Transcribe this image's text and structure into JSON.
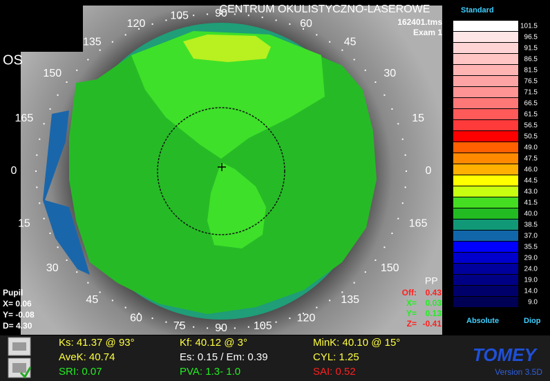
{
  "header": {
    "title": "CENTRUM OKULISTYCZNO-LASEROWE",
    "file": "162401.tms",
    "exam": "Exam 1"
  },
  "eye": "OS",
  "angles": [
    "0",
    "15",
    "30",
    "45",
    "60",
    null,
    "90",
    "105",
    "120",
    "135",
    "150",
    "165",
    "0",
    "15",
    "30",
    "45",
    "60",
    "75",
    "90",
    "105",
    "120",
    "135",
    "150",
    "165"
  ],
  "pupil": {
    "title": "Pupil",
    "x": "X=  0.06",
    "y": "Y=  -0.08",
    "d": "D=  4.30"
  },
  "pp": {
    "title": "PP",
    "rows": [
      {
        "label": "Off:",
        "value": "0.43",
        "color": "#ff2020"
      },
      {
        "label": "X=",
        "value": "0.03",
        "color": "#22ee22"
      },
      {
        "label": "Y=",
        "value": "0.13",
        "color": "#22ee22"
      },
      {
        "label": "Z=",
        "value": "-0.41",
        "color": "#ff2020"
      }
    ]
  },
  "scale": {
    "title": "Standard",
    "footer_left": "Absolute",
    "footer_right": "Diop",
    "steps": [
      {
        "label": "101.5",
        "color": "#ffffff"
      },
      {
        "label": "96.5",
        "color": "#ffe6e6"
      },
      {
        "label": "91.5",
        "color": "#ffd4d4"
      },
      {
        "label": "86.5",
        "color": "#ffc4c4"
      },
      {
        "label": "81.5",
        "color": "#ffb4b4"
      },
      {
        "label": "76.5",
        "color": "#ffa4a4"
      },
      {
        "label": "71.5",
        "color": "#ff9494"
      },
      {
        "label": "66.5",
        "color": "#ff7878"
      },
      {
        "label": "61.5",
        "color": "#ff5a5a"
      },
      {
        "label": "56.5",
        "color": "#ff3a3a"
      },
      {
        "label": "50.5",
        "color": "#ff0000"
      },
      {
        "label": "49.0",
        "color": "#ff6000"
      },
      {
        "label": "47.5",
        "color": "#ff8a00"
      },
      {
        "label": "46.0",
        "color": "#ffb000"
      },
      {
        "label": "44.5",
        "color": "#ffff00"
      },
      {
        "label": "43.0",
        "color": "#c8ff10"
      },
      {
        "label": "41.5",
        "color": "#44dd22"
      },
      {
        "label": "40.0",
        "color": "#22bb22"
      },
      {
        "label": "38.5",
        "color": "#119977"
      },
      {
        "label": "37.0",
        "color": "#1166aa"
      },
      {
        "label": "35.5",
        "color": "#0000ff"
      },
      {
        "label": "29.0",
        "color": "#0000cc"
      },
      {
        "label": "24.0",
        "color": "#00009c"
      },
      {
        "label": "19.0",
        "color": "#000084"
      },
      {
        "label": "14.0",
        "color": "#00006a"
      },
      {
        "label": "9.0",
        "color": "#000054"
      }
    ]
  },
  "stats": [
    [
      {
        "text": "Ks: 41.37 @ 93°",
        "color": "#ffff40"
      },
      {
        "text": "Kf: 40.12 @  3°",
        "color": "#ffff40"
      },
      {
        "text": "MinK: 40.10 @ 15°",
        "color": "#ffff40"
      }
    ],
    [
      {
        "text": "AveK: 40.74",
        "color": "#ffff40"
      },
      {
        "text": "Es: 0.15 / Em: 0.39",
        "color": "#ffffff"
      },
      {
        "text": "CYL:  1.25",
        "color": "#ffff40"
      }
    ],
    [
      {
        "text": "SRI: 0.07",
        "color": "#22ee22"
      },
      {
        "text": "PVA:  1.3-  1.0",
        "color": "#22ee22"
      },
      {
        "text": "SAI: 0.52",
        "color": "#ff2020"
      }
    ]
  ],
  "brand": {
    "name": "TOMEY",
    "version": "Version 3.5D"
  }
}
